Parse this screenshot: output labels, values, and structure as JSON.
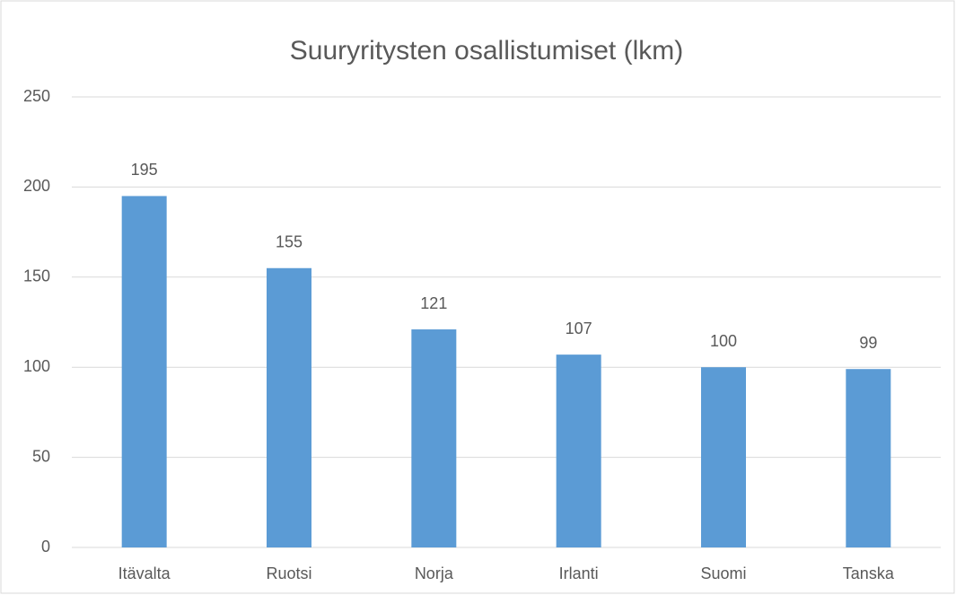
{
  "chart_data": {
    "type": "bar",
    "title": "Suuryritysten osallistumiset (lkm)",
    "categories": [
      "Itävalta",
      "Ruotsi",
      "Norja",
      "Irlanti",
      "Suomi",
      "Tanska"
    ],
    "values": [
      195,
      155,
      121,
      107,
      100,
      99
    ],
    "color": "#5b9bd5",
    "ylim": [
      0,
      250
    ],
    "yticks": [
      0,
      50,
      100,
      150,
      200,
      250
    ],
    "grid": true
  }
}
